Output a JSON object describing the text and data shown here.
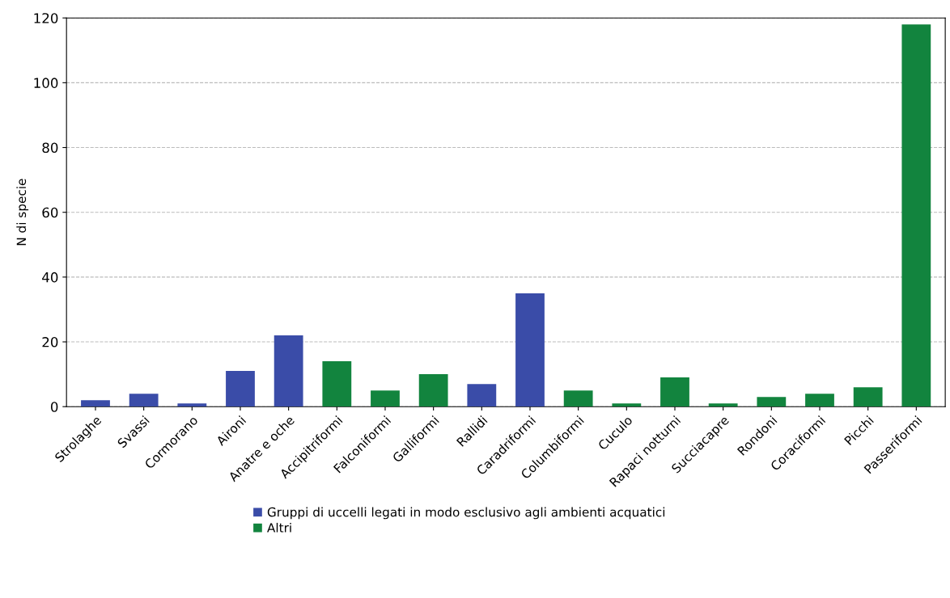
{
  "chart_data": {
    "type": "bar",
    "ylabel": "N di specie",
    "categories": [
      "Strolaghe",
      "Svassi",
      "Cormorano",
      "Aironi",
      "Anatre e oche",
      "Accipitriformi",
      "Falconiformi",
      "Galliformi",
      "Rallidi",
      "Caradriformi",
      "Columbiformi",
      "Cuculo",
      "Rapaci notturni",
      "Succiacapre",
      "Rondoni",
      "Coraciformi",
      "Picchi",
      "Passeriformi"
    ],
    "series": [
      {
        "name": "Gruppi di uccelli legati in modo esclusivo agli ambienti acquatici",
        "color": "#3a4ca8",
        "values": [
          2,
          4,
          1,
          11,
          22,
          null,
          null,
          null,
          7,
          35,
          null,
          null,
          null,
          null,
          null,
          null,
          null,
          null
        ]
      },
      {
        "name": "Altri",
        "color": "#12843e",
        "values": [
          null,
          null,
          null,
          null,
          null,
          14,
          5,
          10,
          null,
          null,
          5,
          1,
          9,
          1,
          3,
          4,
          6,
          118
        ]
      }
    ],
    "ylim": [
      0,
      120
    ],
    "yticks": [
      0,
      20,
      40,
      60,
      80,
      100,
      120
    ],
    "grid": "y",
    "legend": "bottom"
  }
}
